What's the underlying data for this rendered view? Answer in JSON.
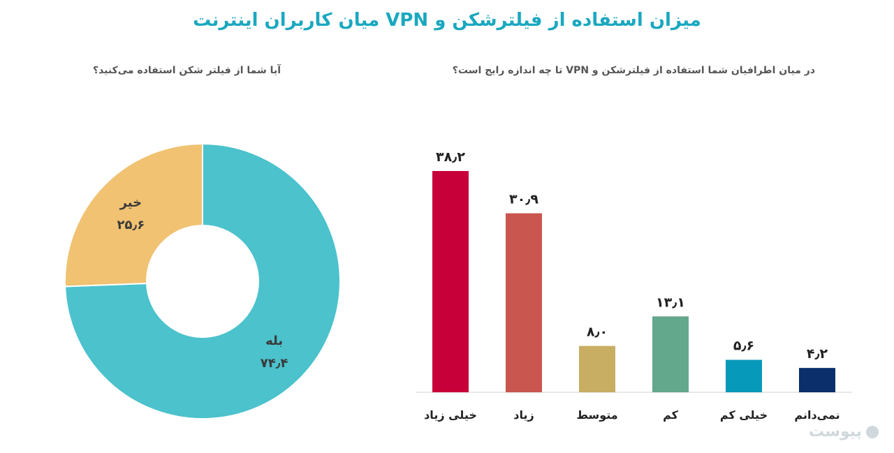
{
  "title": "میزان استفاده از فیلترشکن و VPN  میان کاربران اینترنت",
  "watermark": "پیوست",
  "chart_data": [
    {
      "type": "bar",
      "title": "در میان اطرافیان شما استفاده از فیلترشکن و VPN تا چه اندازه رایج است؟",
      "categories": [
        "خیلی زیاد",
        "زیاد",
        "متوسط",
        "کم",
        "خیلی کم",
        "نمی‌دانم"
      ],
      "values": [
        38.2,
        30.9,
        8.0,
        13.1,
        5.6,
        4.2
      ],
      "value_labels": [
        "۳۸٫۲",
        "۳۰٫۹",
        "۸٫۰",
        "۱۳٫۱",
        "۵٫۶",
        "۴٫۲"
      ],
      "colors": [
        "#c8003a",
        "#c9564f",
        "#c8ae62",
        "#63a78c",
        "#0799b9",
        "#0a2f6b"
      ],
      "ylim": [
        0,
        40
      ],
      "grid": false,
      "legend": "none"
    },
    {
      "type": "pie",
      "style": "donut",
      "title": "آیا شما از فیلتر شکن استفاده می‌کنید؟",
      "slices": [
        {
          "label": "بله",
          "value": 74.4,
          "value_label": "۷۴٫۴",
          "color": "#4bc2cc"
        },
        {
          "label": "خیر",
          "value": 25.6,
          "value_label": "۲۵٫۶",
          "color": "#f0c271"
        }
      ]
    }
  ]
}
